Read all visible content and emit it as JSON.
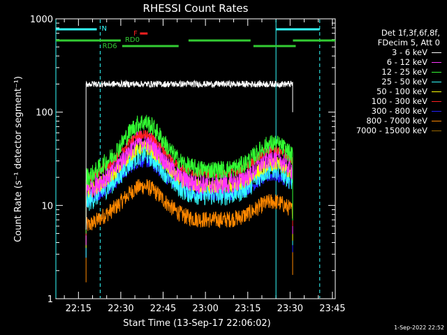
{
  "chart_data": {
    "type": "line",
    "title": "RHESSI Count Rates",
    "xlabel": "Start Time (13-Sep-17 22:06:02)",
    "ylabel": "Count Rate (s⁻¹ detector segment⁻¹)",
    "yscale": "log",
    "ylim": [
      1,
      1000
    ],
    "xlim_min": [
      7,
      106
    ],
    "x_ticks": [
      {
        "min": 15,
        "label": "22:15"
      },
      {
        "min": 30,
        "label": "22:30"
      },
      {
        "min": 45,
        "label": "22:45"
      },
      {
        "min": 60,
        "label": "23:00"
      },
      {
        "min": 75,
        "label": "23:15"
      },
      {
        "min": 90,
        "label": "23:30"
      },
      {
        "min": 105,
        "label": "23:45"
      }
    ],
    "y_ticks": [
      {
        "v": 1,
        "label": "1"
      },
      {
        "v": 10,
        "label": "10"
      },
      {
        "v": 100,
        "label": "100"
      },
      {
        "v": 1000,
        "label": "1000"
      }
    ],
    "legend_header": [
      "Det 1f,3f,6f,8f,",
      "FDecim 5, Att 0"
    ],
    "series": [
      {
        "name": "3 - 6 keV",
        "color": "#ffffff",
        "shape": "flat",
        "start": 200,
        "peak": 200,
        "trough": 200,
        "peak2": 200,
        "noise": 0.035
      },
      {
        "name": "6 - 12 keV",
        "color": "#ff33ff",
        "shape": "hump",
        "start": 15,
        "peak": 50,
        "trough": 17,
        "peak2": 33,
        "noise": 0.12
      },
      {
        "name": "12 - 25 keV",
        "color": "#33ff33",
        "shape": "hump",
        "start": 20,
        "peak": 78,
        "trough": 24,
        "peak2": 46,
        "noise": 0.1
      },
      {
        "name": "25 - 50 keV",
        "color": "#33ffff",
        "shape": "hump",
        "start": 11,
        "peak": 36,
        "trough": 13,
        "peak2": 25,
        "noise": 0.12
      },
      {
        "name": "50 - 100 keV",
        "color": "#ffff00",
        "shape": "hump",
        "start": 14,
        "peak": 42,
        "trough": 16,
        "peak2": 28,
        "noise": 0.08
      },
      {
        "name": "100 - 300 keV",
        "color": "#ff2020",
        "shape": "hump",
        "start": 19,
        "peak": 58,
        "trough": 22,
        "peak2": 40,
        "noise": 0.05
      },
      {
        "name": "300 - 800 keV",
        "color": "#2222ff",
        "shape": "hump",
        "start": 11,
        "peak": 30,
        "trough": 13,
        "peak2": 21,
        "noise": 0.07
      },
      {
        "name": "800 - 7000 keV",
        "color": "#ff8800",
        "shape": "hump",
        "start": 6,
        "peak": 16,
        "trough": 7,
        "peak2": 11,
        "noise": 0.09
      },
      {
        "name": "7000 - 15000 keV",
        "color": "#996600",
        "shape": "none",
        "start": 0,
        "peak": 0,
        "trough": 0,
        "peak2": 0,
        "noise": 0
      }
    ],
    "data_span_min": [
      17.7,
      90.9
    ],
    "night_lines_min": [
      7,
      22.7,
      85,
      100.5
    ],
    "annotations": [
      {
        "label": "N",
        "color": "#33ffff"
      },
      {
        "label": "F",
        "color": "#ff2020"
      },
      {
        "label": "RD0",
        "color": "#33cc33"
      },
      {
        "label": "RD6",
        "color": "#33cc33"
      }
    ],
    "timestamp": "1-Sep-2022 22:52"
  }
}
